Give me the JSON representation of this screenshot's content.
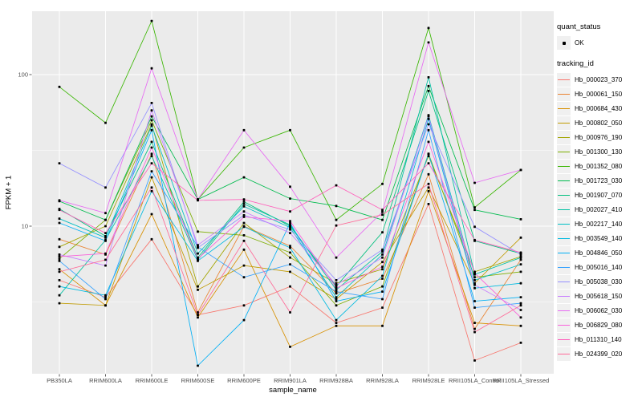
{
  "figure": {
    "background": "#FFFFFF",
    "panel_background": "#EBEBEB",
    "gridline_color": "#FFFFFF",
    "tick_color": "#333333",
    "tick_label_color": "#4D4D4D",
    "point_color": "#000000"
  },
  "axes": {
    "x_title": "sample_name",
    "y_title": "FPKM + 1",
    "y_tick_labels": [
      "100",
      "10"
    ],
    "y_tick_values": [
      100,
      10
    ],
    "y_minor_values": [
      31.62,
      3.162
    ]
  },
  "legend": {
    "quant_status_title": "quant_status",
    "quant_status_items": [
      {
        "label": "OK",
        "marker": "point"
      }
    ],
    "tracking_id_title": "tracking_id"
  },
  "chart_data": {
    "type": "line",
    "title": "",
    "xlabel": "sample_name",
    "ylabel": "FPKM + 1",
    "y_scale": "log10",
    "ylim": [
      1.05,
      270
    ],
    "grid": true,
    "legend_position": "right",
    "point_marker": "black-point",
    "categories": [
      "PB350LA",
      "RRIM600LA",
      "RRIM600LE",
      "RRIM600SE",
      "RRIM600PE",
      "RRIM901LA",
      "RRIM928BA",
      "RRIM928LA",
      "RRIM928LE",
      "RRII105LA_Control",
      "RRII105LA_Stressed"
    ],
    "series": [
      {
        "name": "Hb_000023_370",
        "color": "#F8766D",
        "values": [
          4.4,
          3.4,
          8.2,
          2.6,
          3.0,
          4.0,
          2.3,
          2.9,
          14.0,
          1.3,
          1.7
        ]
      },
      {
        "name": "Hb_000061_150",
        "color": "#EA8331",
        "values": [
          8.2,
          6.5,
          30.0,
          2.7,
          10.0,
          7.4,
          3.6,
          4.5,
          22.0,
          2.1,
          6.0
        ]
      },
      {
        "name": "Hb_000684_430",
        "color": "#D89000",
        "values": [
          5.2,
          3.0,
          12.0,
          2.5,
          7.0,
          1.6,
          2.2,
          2.2,
          17.0,
          2.3,
          2.2
        ]
      },
      {
        "name": "Hb_000802_050",
        "color": "#C09B00",
        "values": [
          3.1,
          3.0,
          21.0,
          3.8,
          5.5,
          5.0,
          3.3,
          5.8,
          18.0,
          4.2,
          8.4
        ]
      },
      {
        "name": "Hb_000976_190",
        "color": "#A3A500",
        "values": [
          7.3,
          10.0,
          47.0,
          4.0,
          10.5,
          6.2,
          4.2,
          5.2,
          29.0,
          5.0,
          6.3
        ]
      },
      {
        "name": "Hb_001300_130",
        "color": "#7CAE00",
        "values": [
          6.1,
          11.0,
          50.0,
          9.2,
          8.7,
          6.7,
          3.0,
          4.0,
          30.0,
          4.6,
          5.0
        ]
      },
      {
        "name": "Hb_001352_080",
        "color": "#39B600",
        "values": [
          83.0,
          48.0,
          226.0,
          15.0,
          33.0,
          43.0,
          11.0,
          19.0,
          203.0,
          13.3,
          23.5
        ]
      },
      {
        "name": "Hb_001723_030",
        "color": "#00BB4E",
        "values": [
          14.6,
          11.0,
          53.0,
          15.0,
          21.0,
          15.2,
          13.6,
          11.0,
          84.0,
          12.8,
          11.1
        ]
      },
      {
        "name": "Hb_001907_070",
        "color": "#00BF7D",
        "values": [
          13.0,
          8.6,
          36.0,
          6.2,
          14.5,
          10.0,
          4.0,
          9.1,
          78.0,
          8.0,
          6.6
        ]
      },
      {
        "name": "Hb_002027_410",
        "color": "#00C1A3",
        "values": [
          3.5,
          8.1,
          29.0,
          6.0,
          14.0,
          10.2,
          3.8,
          6.8,
          96.0,
          4.8,
          6.2
        ]
      },
      {
        "name": "Hb_002217_140",
        "color": "#00BFC4",
        "values": [
          11.2,
          8.4,
          46.0,
          6.6,
          13.5,
          9.8,
          3.4,
          6.5,
          54.0,
          4.4,
          5.6
        ]
      },
      {
        "name": "Hb_003549_140",
        "color": "#00BAE0",
        "values": [
          4.0,
          3.5,
          17.0,
          5.9,
          9.9,
          7.2,
          2.4,
          4.7,
          51.0,
          3.9,
          4.2
        ]
      },
      {
        "name": "Hb_004846_050",
        "color": "#00B0F6",
        "values": [
          10.5,
          8.0,
          43.0,
          1.2,
          2.4,
          10.5,
          3.2,
          3.7,
          30.0,
          3.2,
          3.4
        ]
      },
      {
        "name": "Hb_005016_140",
        "color": "#35A2FF",
        "values": [
          5.9,
          3.3,
          23.0,
          7.3,
          4.6,
          5.6,
          3.7,
          3.3,
          43.0,
          2.9,
          3.1
        ]
      },
      {
        "name": "Hb_005038_030",
        "color": "#9590FF",
        "values": [
          26.0,
          18.0,
          65.0,
          7.2,
          11.8,
          9.5,
          4.4,
          7.0,
          47.0,
          9.9,
          6.5
        ]
      },
      {
        "name": "Hb_005618_150",
        "color": "#C77CFF",
        "values": [
          6.5,
          5.5,
          58.0,
          7.5,
          12.5,
          9.0,
          4.1,
          6.2,
          53.0,
          4.1,
          2.8
        ]
      },
      {
        "name": "Hb_006062_030",
        "color": "#E76BF3",
        "values": [
          14.8,
          12.2,
          110.0,
          15.0,
          43.0,
          18.2,
          6.2,
          12.4,
          163.0,
          19.3,
          23.5
        ]
      },
      {
        "name": "Hb_006829_080",
        "color": "#FA62DB",
        "values": [
          6.3,
          6.6,
          33.0,
          6.1,
          11.5,
          10.8,
          3.9,
          5.4,
          36.0,
          4.9,
          2.5
        ]
      },
      {
        "name": "Hb_011310_140",
        "color": "#FF62BC",
        "values": [
          12.8,
          9.0,
          26.0,
          14.8,
          15.0,
          12.5,
          18.6,
          12.8,
          26.0,
          8.1,
          6.7
        ]
      },
      {
        "name": "Hb_024399_020",
        "color": "#FF6A98",
        "values": [
          5.0,
          6.0,
          18.0,
          2.6,
          8.0,
          2.7,
          10.1,
          11.9,
          19.0,
          2.0,
          3.0
        ]
      }
    ]
  }
}
